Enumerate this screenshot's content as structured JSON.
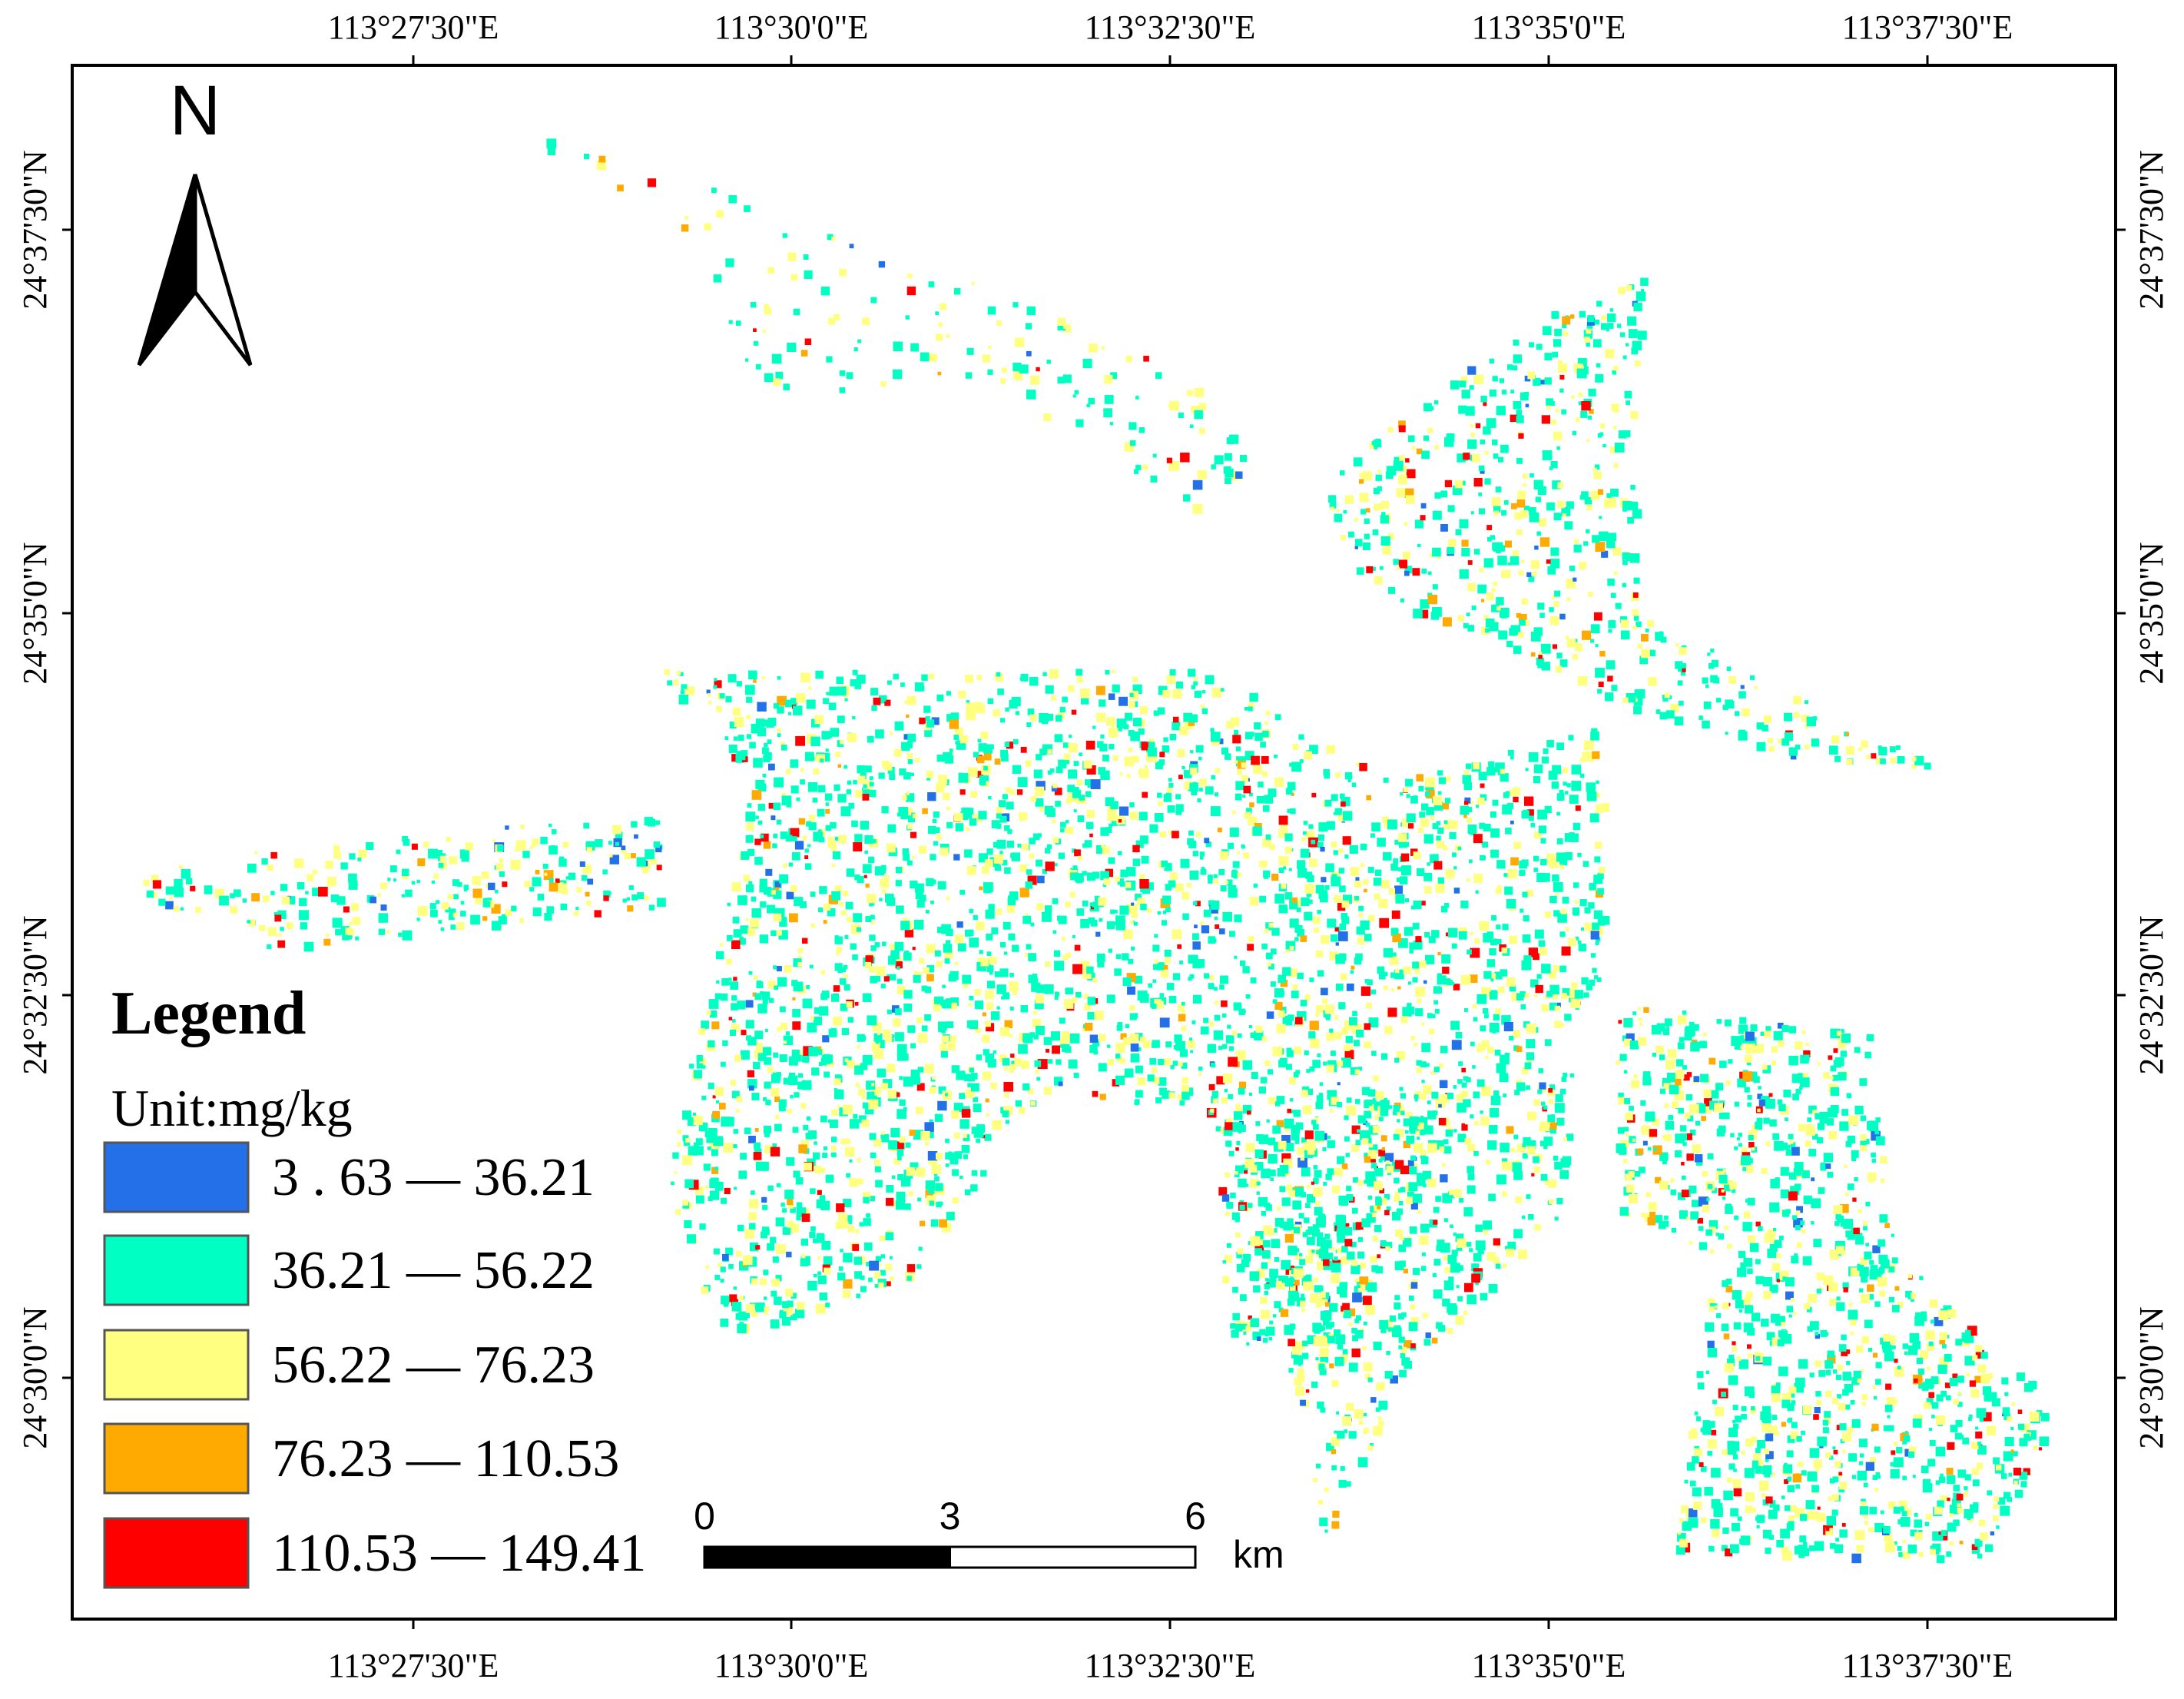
{
  "map": {
    "north_label": "N",
    "top_labels": [
      "113°27'30\"E",
      "113°30'0\"E",
      "113°32'30\"E",
      "113°35'0\"E",
      "113°37'30\"E"
    ],
    "bottom_labels": [
      "113°27'30\"E",
      "113°30'0\"E",
      "113°32'30\"E",
      "113°35'0\"E",
      "113°37'30\"E"
    ],
    "left_labels": [
      "24°37'30\"N",
      "24°35'0\"N",
      "24°32'30\"N",
      "24°30'0\"N"
    ],
    "right_labels": [
      "24°37'30\"N",
      "24°35'0\"N",
      "24°32'30\"N",
      "24°30'0\"N"
    ],
    "legend": {
      "title": "Legend",
      "unit": "Unit:mg/kg",
      "classes": [
        {
          "label": "3 . 63 — 36.21",
          "color": "#2370e8"
        },
        {
          "label": "36.21 — 56.22",
          "color": "#00ffc3"
        },
        {
          "label": "56.22 — 76.23",
          "color": "#ffff80"
        },
        {
          "label": "76.23 — 110.53",
          "color": "#ffaa00"
        },
        {
          "label": "110.53 — 149.41",
          "color": "#ff0000"
        }
      ]
    },
    "scale_bar": {
      "ticks": [
        0,
        3,
        6
      ],
      "unit": "km"
    }
  }
}
